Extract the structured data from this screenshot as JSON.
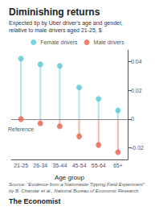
{
  "chart_data": {
    "type": "scatter",
    "title": "Diminishing returns",
    "subtitle": "Expected tip by Uber driver's age and gender,\nrelative to male drivers aged 21-25, $",
    "categories": [
      "21-25",
      "26-34",
      "35-44",
      "45-54",
      "55-64",
      "65+"
    ],
    "series": [
      {
        "name": "Female drivers",
        "color": "#56C8D5",
        "values": [
          0.042,
          0.038,
          0.037,
          0.022,
          0.014,
          0.006
        ]
      },
      {
        "name": "Male drivers",
        "color": "#E8604B",
        "values": [
          0.0,
          -0.003,
          -0.005,
          -0.012,
          -0.018,
          -0.023
        ]
      }
    ],
    "xlabel": "Age group",
    "ylim": [
      -0.028,
      0.048
    ],
    "yticks": [
      -0.02,
      0,
      0.02,
      0.04
    ],
    "annotations": [
      "Reference"
    ],
    "source": "Source: “Evidence from a Nationwide Tipping Field Experiment”\nby B. Chandar et al., National Bureau of Economic Research",
    "branding": "The Economist",
    "legend": "top",
    "grid": false
  }
}
